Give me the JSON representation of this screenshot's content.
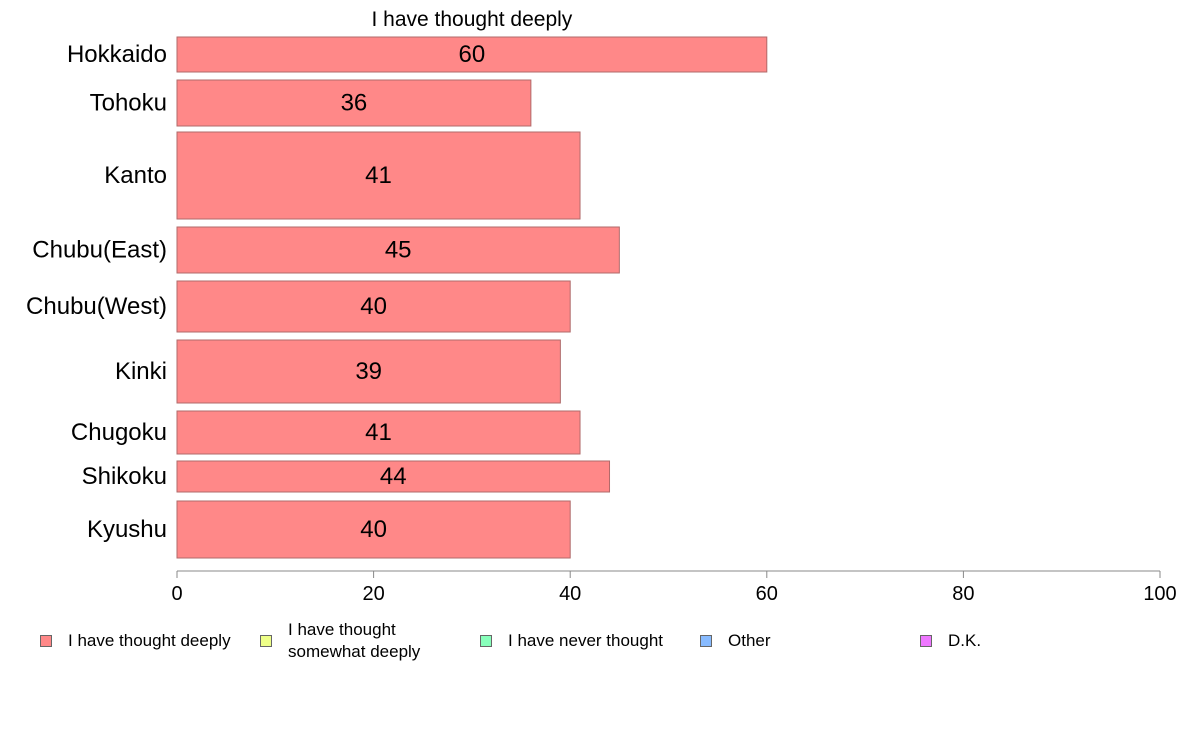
{
  "chart_data": {
    "type": "bar",
    "orientation": "horizontal",
    "title": "I have thought deeply",
    "categories": [
      "Hokkaido",
      "Tohoku",
      "Kanto",
      "Chubu(East)",
      "Chubu(West)",
      "Kinki",
      "Chugoku",
      "Shikoku",
      "Kyushu"
    ],
    "values": [
      60,
      36,
      41,
      45,
      40,
      39,
      41,
      44,
      40
    ],
    "xlim": [
      0,
      100
    ],
    "xticks": [
      0,
      20,
      40,
      60,
      80,
      100
    ],
    "bar_color": "#ff8888",
    "bar_edge_color": "#b06a6a",
    "grid": false,
    "legend_position": "bottom",
    "legend": [
      {
        "label": "I have thought deeply",
        "color": "#ff8888"
      },
      {
        "label": "I have thought\nsomewhat deeply",
        "color": "#eeff88"
      },
      {
        "label": "I have never thought",
        "color": "#88ffbb"
      },
      {
        "label": "Other",
        "color": "#88bbff"
      },
      {
        "label": "D.K.",
        "color": "#ee77ff"
      }
    ]
  }
}
